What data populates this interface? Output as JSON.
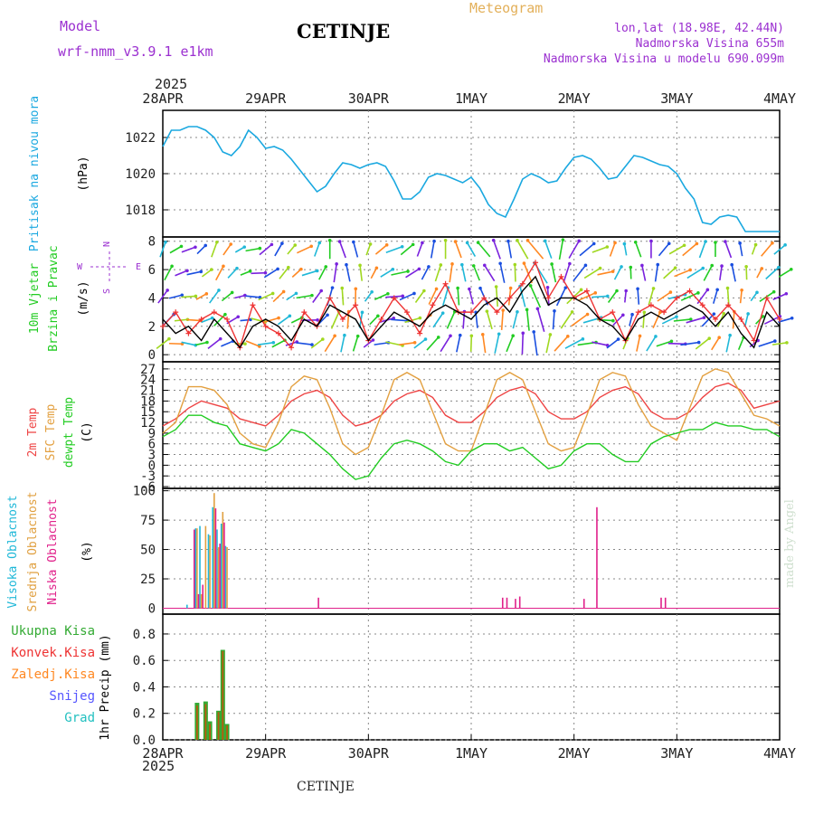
{
  "header": {
    "station": "CETINJE",
    "model_label": "Model",
    "model_name": "wrf-nmm_v3.9.1 e1km",
    "product": "Meteogram",
    "location_lines": [
      "lon,lat (18.98E, 42.44N)",
      "Nadmorska Visina 655m",
      "Nadmorska Visina u modelu 690.099m"
    ],
    "year": "2025",
    "bottom_station": "CETINJE",
    "watermark": "made by Angel"
  },
  "colors": {
    "pressure": "#1aa8e0",
    "wind_black": "#000000",
    "wind_red": "#ee3333",
    "temp2m": "#ee4444",
    "sfc": "#e3a040",
    "dewpt": "#22cc22",
    "high": "#20b8d8",
    "mid": "#e0a040",
    "low": "#e0208a",
    "total": "#33aa33",
    "conv": "#ee3333",
    "frozen": "#ff8822",
    "snow": "#5555ff",
    "grad": "#22c0c0",
    "purple": "#9b30d0"
  },
  "chart_data": [
    {
      "type": "line",
      "panel": "pressure",
      "ylabel_lines": [
        "Pritisak na nivou mora",
        "(hPa)"
      ],
      "ylim": [
        1016.5,
        1023.5
      ],
      "yticks": [
        1018,
        1020,
        1022
      ],
      "xticks": [
        "28APR",
        "29APR",
        "30APR",
        "1MAY",
        "2MAY",
        "3MAY",
        "4MAY"
      ],
      "xlim_hours": [
        0,
        144
      ],
      "series": [
        {
          "name": "Pritisak na nivou mora",
          "x": [
            0,
            2,
            4,
            6,
            8,
            10,
            12,
            14,
            16,
            18,
            20,
            22,
            24,
            26,
            28,
            30,
            32,
            34,
            36,
            38,
            40,
            42,
            44,
            46,
            48,
            50,
            52,
            54,
            56,
            58,
            60,
            62,
            64,
            66,
            68,
            70,
            72,
            74,
            76,
            78,
            80,
            82,
            84,
            86,
            88,
            90,
            92,
            94,
            96,
            98,
            100,
            102,
            104,
            106,
            108,
            110,
            112,
            114,
            116,
            118,
            120,
            122,
            124,
            126,
            128,
            130,
            132,
            134,
            136,
            138,
            140,
            142,
            144
          ],
          "values": [
            1021.5,
            1022.4,
            1022.4,
            1022.6,
            1022.6,
            1022.4,
            1022.0,
            1021.2,
            1021.0,
            1021.5,
            1022.4,
            1022.0,
            1021.4,
            1021.5,
            1021.3,
            1020.8,
            1020.2,
            1019.6,
            1019.0,
            1019.3,
            1020.0,
            1020.6,
            1020.5,
            1020.3,
            1020.5,
            1020.6,
            1020.4,
            1019.6,
            1018.6,
            1018.6,
            1019.0,
            1019.8,
            1020.0,
            1019.9,
            1019.7,
            1019.5,
            1019.8,
            1019.2,
            1018.3,
            1017.8,
            1017.6,
            1018.6,
            1019.7,
            1020.0,
            1019.8,
            1019.5,
            1019.6,
            1020.3,
            1020.9,
            1021.0,
            1020.8,
            1020.3,
            1019.7,
            1019.8,
            1020.4,
            1021.0,
            1020.9,
            1020.7,
            1020.5,
            1020.4,
            1020.0,
            1019.2,
            1018.6,
            1017.3,
            1017.2,
            1017.6,
            1017.7,
            1017.6,
            1016.8,
            1016.8,
            1016.8,
            1016.8,
            1016.8
          ]
        }
      ]
    },
    {
      "type": "line",
      "panel": "wind",
      "ylabel_lines": [
        "10m Vjetar",
        "Brzina i Pravac",
        "(m/s)"
      ],
      "compass": {
        "n": "N",
        "s": "S",
        "w": "W",
        "e": "E"
      },
      "ylim": [
        -0.5,
        8.3
      ],
      "yticks": [
        0,
        2,
        4,
        6,
        8
      ],
      "series": [
        {
          "name": "brzina",
          "x": [
            0,
            3,
            6,
            9,
            12,
            15,
            18,
            21,
            24,
            27,
            30,
            33,
            36,
            39,
            42,
            45,
            48,
            51,
            54,
            57,
            60,
            63,
            66,
            69,
            72,
            75,
            78,
            81,
            84,
            87,
            90,
            93,
            96,
            99,
            102,
            105,
            108,
            111,
            114,
            117,
            120,
            123,
            126,
            129,
            132,
            135,
            138,
            141,
            144
          ],
          "values": [
            2.5,
            1.5,
            2.0,
            1.0,
            2.5,
            1.5,
            0.5,
            2.0,
            2.5,
            2.0,
            1.0,
            2.5,
            2.0,
            3.5,
            3.0,
            2.5,
            1.0,
            2.0,
            3.0,
            2.5,
            2.0,
            3.0,
            3.5,
            3.0,
            2.5,
            3.5,
            4.0,
            3.0,
            4.5,
            5.5,
            3.5,
            4.0,
            4.0,
            3.5,
            2.5,
            2.0,
            1.0,
            2.5,
            3.0,
            2.5,
            3.0,
            3.5,
            3.0,
            2.0,
            3.0,
            1.5,
            0.5,
            3.0,
            2.0
          ]
        },
        {
          "name": "udari",
          "x": [
            0,
            3,
            6,
            9,
            12,
            15,
            18,
            21,
            24,
            27,
            30,
            33,
            36,
            39,
            42,
            45,
            48,
            51,
            54,
            57,
            60,
            63,
            66,
            69,
            72,
            75,
            78,
            81,
            84,
            87,
            90,
            93,
            96,
            99,
            102,
            105,
            108,
            111,
            114,
            117,
            120,
            123,
            126,
            129,
            132,
            135,
            138,
            141,
            144
          ],
          "values": [
            2.0,
            3.0,
            1.5,
            2.5,
            3.0,
            2.5,
            0.5,
            3.5,
            2.0,
            1.5,
            0.5,
            3.0,
            2.0,
            4.0,
            2.5,
            3.5,
            1.0,
            2.5,
            4.0,
            3.0,
            1.5,
            3.5,
            5.0,
            3.0,
            3.0,
            4.0,
            3.0,
            4.0,
            5.0,
            6.5,
            4.0,
            5.5,
            4.0,
            4.5,
            2.5,
            3.0,
            1.0,
            3.0,
            3.5,
            3.0,
            4.0,
            4.5,
            3.5,
            2.5,
            3.5,
            2.5,
            1.0,
            4.0,
            2.5
          ]
        }
      ],
      "direction_from_deg": [
        200,
        240,
        250,
        225,
        200,
        215,
        240,
        260,
        230,
        210,
        220,
        245,
        200,
        180,
        160,
        165,
        200,
        230,
        250,
        230,
        200,
        190,
        180,
        160,
        150,
        140,
        160,
        170,
        150,
        140,
        160,
        190,
        210,
        230,
        250,
        200,
        170,
        160,
        180,
        220,
        240,
        230,
        200,
        180,
        160,
        170,
        200,
        220,
        230
      ]
    },
    {
      "type": "line",
      "panel": "temperature",
      "ylabel_lines": [
        "2m Temp",
        "SFC Temp",
        "dewpt Temp",
        "(C)"
      ],
      "ylim": [
        -6.5,
        29
      ],
      "yticks": [
        -6,
        -3,
        0,
        3,
        6,
        9,
        12,
        15,
        18,
        21,
        24,
        27
      ],
      "x": [
        0,
        3,
        6,
        9,
        12,
        15,
        18,
        21,
        24,
        27,
        30,
        33,
        36,
        39,
        42,
        45,
        48,
        51,
        54,
        57,
        60,
        63,
        66,
        69,
        72,
        75,
        78,
        81,
        84,
        87,
        90,
        93,
        96,
        99,
        102,
        105,
        108,
        111,
        114,
        117,
        120,
        123,
        126,
        129,
        132,
        135,
        138,
        141,
        144
      ],
      "series": [
        {
          "name": "2m Temp",
          "values": [
            11,
            13,
            16,
            18,
            17,
            16,
            13,
            12,
            11,
            14,
            18,
            20,
            21,
            19,
            14,
            11,
            12,
            14,
            18,
            20,
            21,
            19,
            14,
            12,
            12,
            15,
            19,
            21,
            22,
            20,
            15,
            13,
            13,
            15,
            19,
            21,
            22,
            20,
            15,
            13,
            13,
            15,
            19,
            22,
            23,
            21,
            16,
            17,
            18
          ]
        },
        {
          "name": "SFC Temp",
          "values": [
            9,
            12,
            22,
            22,
            21,
            17,
            9,
            6,
            5,
            12,
            22,
            25,
            24,
            16,
            6,
            3,
            5,
            14,
            24,
            26,
            24,
            15,
            6,
            4,
            4,
            14,
            24,
            26,
            24,
            15,
            6,
            4,
            5,
            14,
            24,
            26,
            25,
            17,
            11,
            9,
            7,
            16,
            25,
            27,
            26,
            20,
            14,
            13,
            11
          ]
        },
        {
          "name": "dewpt Temp",
          "values": [
            8,
            10,
            14,
            14,
            12,
            11,
            6,
            5,
            4,
            6,
            10,
            9,
            6,
            3,
            -1,
            -4,
            -3,
            2,
            6,
            7,
            6,
            4,
            1,
            0,
            4,
            6,
            6,
            4,
            5,
            2,
            -1,
            0,
            4,
            6,
            6,
            3,
            1,
            1,
            6,
            8,
            9,
            10,
            10,
            12,
            11,
            11,
            10,
            10,
            8
          ]
        }
      ]
    },
    {
      "type": "bar",
      "panel": "clouds",
      "ylabel_lines": [
        "Visoka Oblacnost",
        "Srednja Oblacnost",
        "Niska Oblacnost",
        "(%)"
      ],
      "ylim": [
        -5,
        102
      ],
      "yticks": [
        0,
        25,
        50,
        75,
        100
      ],
      "series": [
        {
          "name": "Visoka Oblacnost",
          "x": [
            6,
            8,
            9,
            11,
            12,
            13,
            14,
            15
          ],
          "values": [
            3,
            68,
            70,
            63,
            86,
            67,
            72,
            53
          ]
        },
        {
          "name": "Srednja Oblacnost",
          "x": [
            8,
            9,
            10,
            11,
            12,
            13,
            14,
            15
          ],
          "values": [
            68,
            12,
            70,
            62,
            98,
            52,
            82,
            52
          ]
        },
        {
          "name": "Niska Oblacnost",
          "x": [
            7,
            8,
            9,
            12,
            13,
            14,
            36,
            79,
            80,
            82,
            83,
            98,
            101,
            116,
            117
          ],
          "values": [
            67,
            12,
            20,
            85,
            55,
            73,
            9,
            9,
            9,
            8,
            10,
            8,
            86,
            9,
            9
          ]
        }
      ]
    },
    {
      "type": "bar",
      "panel": "precipitation",
      "ylabel_lines": [
        "1hr Precip (mm)"
      ],
      "legend": [
        "Ukupna Kisa",
        "Konvek.Kisa",
        "Zaledj.Kisa",
        "Snijeg",
        "Grad"
      ],
      "ylim": [
        0,
        0.95
      ],
      "yticks": [
        0.0,
        0.2,
        0.4,
        0.6,
        0.8
      ],
      "xticks": [
        "28APR",
        "29APR",
        "30APR",
        "1MAY",
        "2MAY",
        "3MAY",
        "4MAY"
      ],
      "series": [
        {
          "name": "Ukupna Kisa",
          "x": [
            8,
            10,
            11,
            13,
            14,
            15
          ],
          "values": [
            0.28,
            0.29,
            0.14,
            0.22,
            0.68,
            0.12
          ]
        },
        {
          "name": "Konvek.Kisa",
          "x": [
            8,
            10,
            11,
            13,
            14,
            15
          ],
          "values": [
            0.26,
            0.27,
            0.12,
            0.21,
            0.67,
            0.11
          ]
        },
        {
          "name": "Zaledj.Kisa",
          "x": [],
          "values": []
        },
        {
          "name": "Snijeg",
          "x": [],
          "values": []
        },
        {
          "name": "Grad",
          "x": [],
          "values": []
        }
      ]
    }
  ]
}
